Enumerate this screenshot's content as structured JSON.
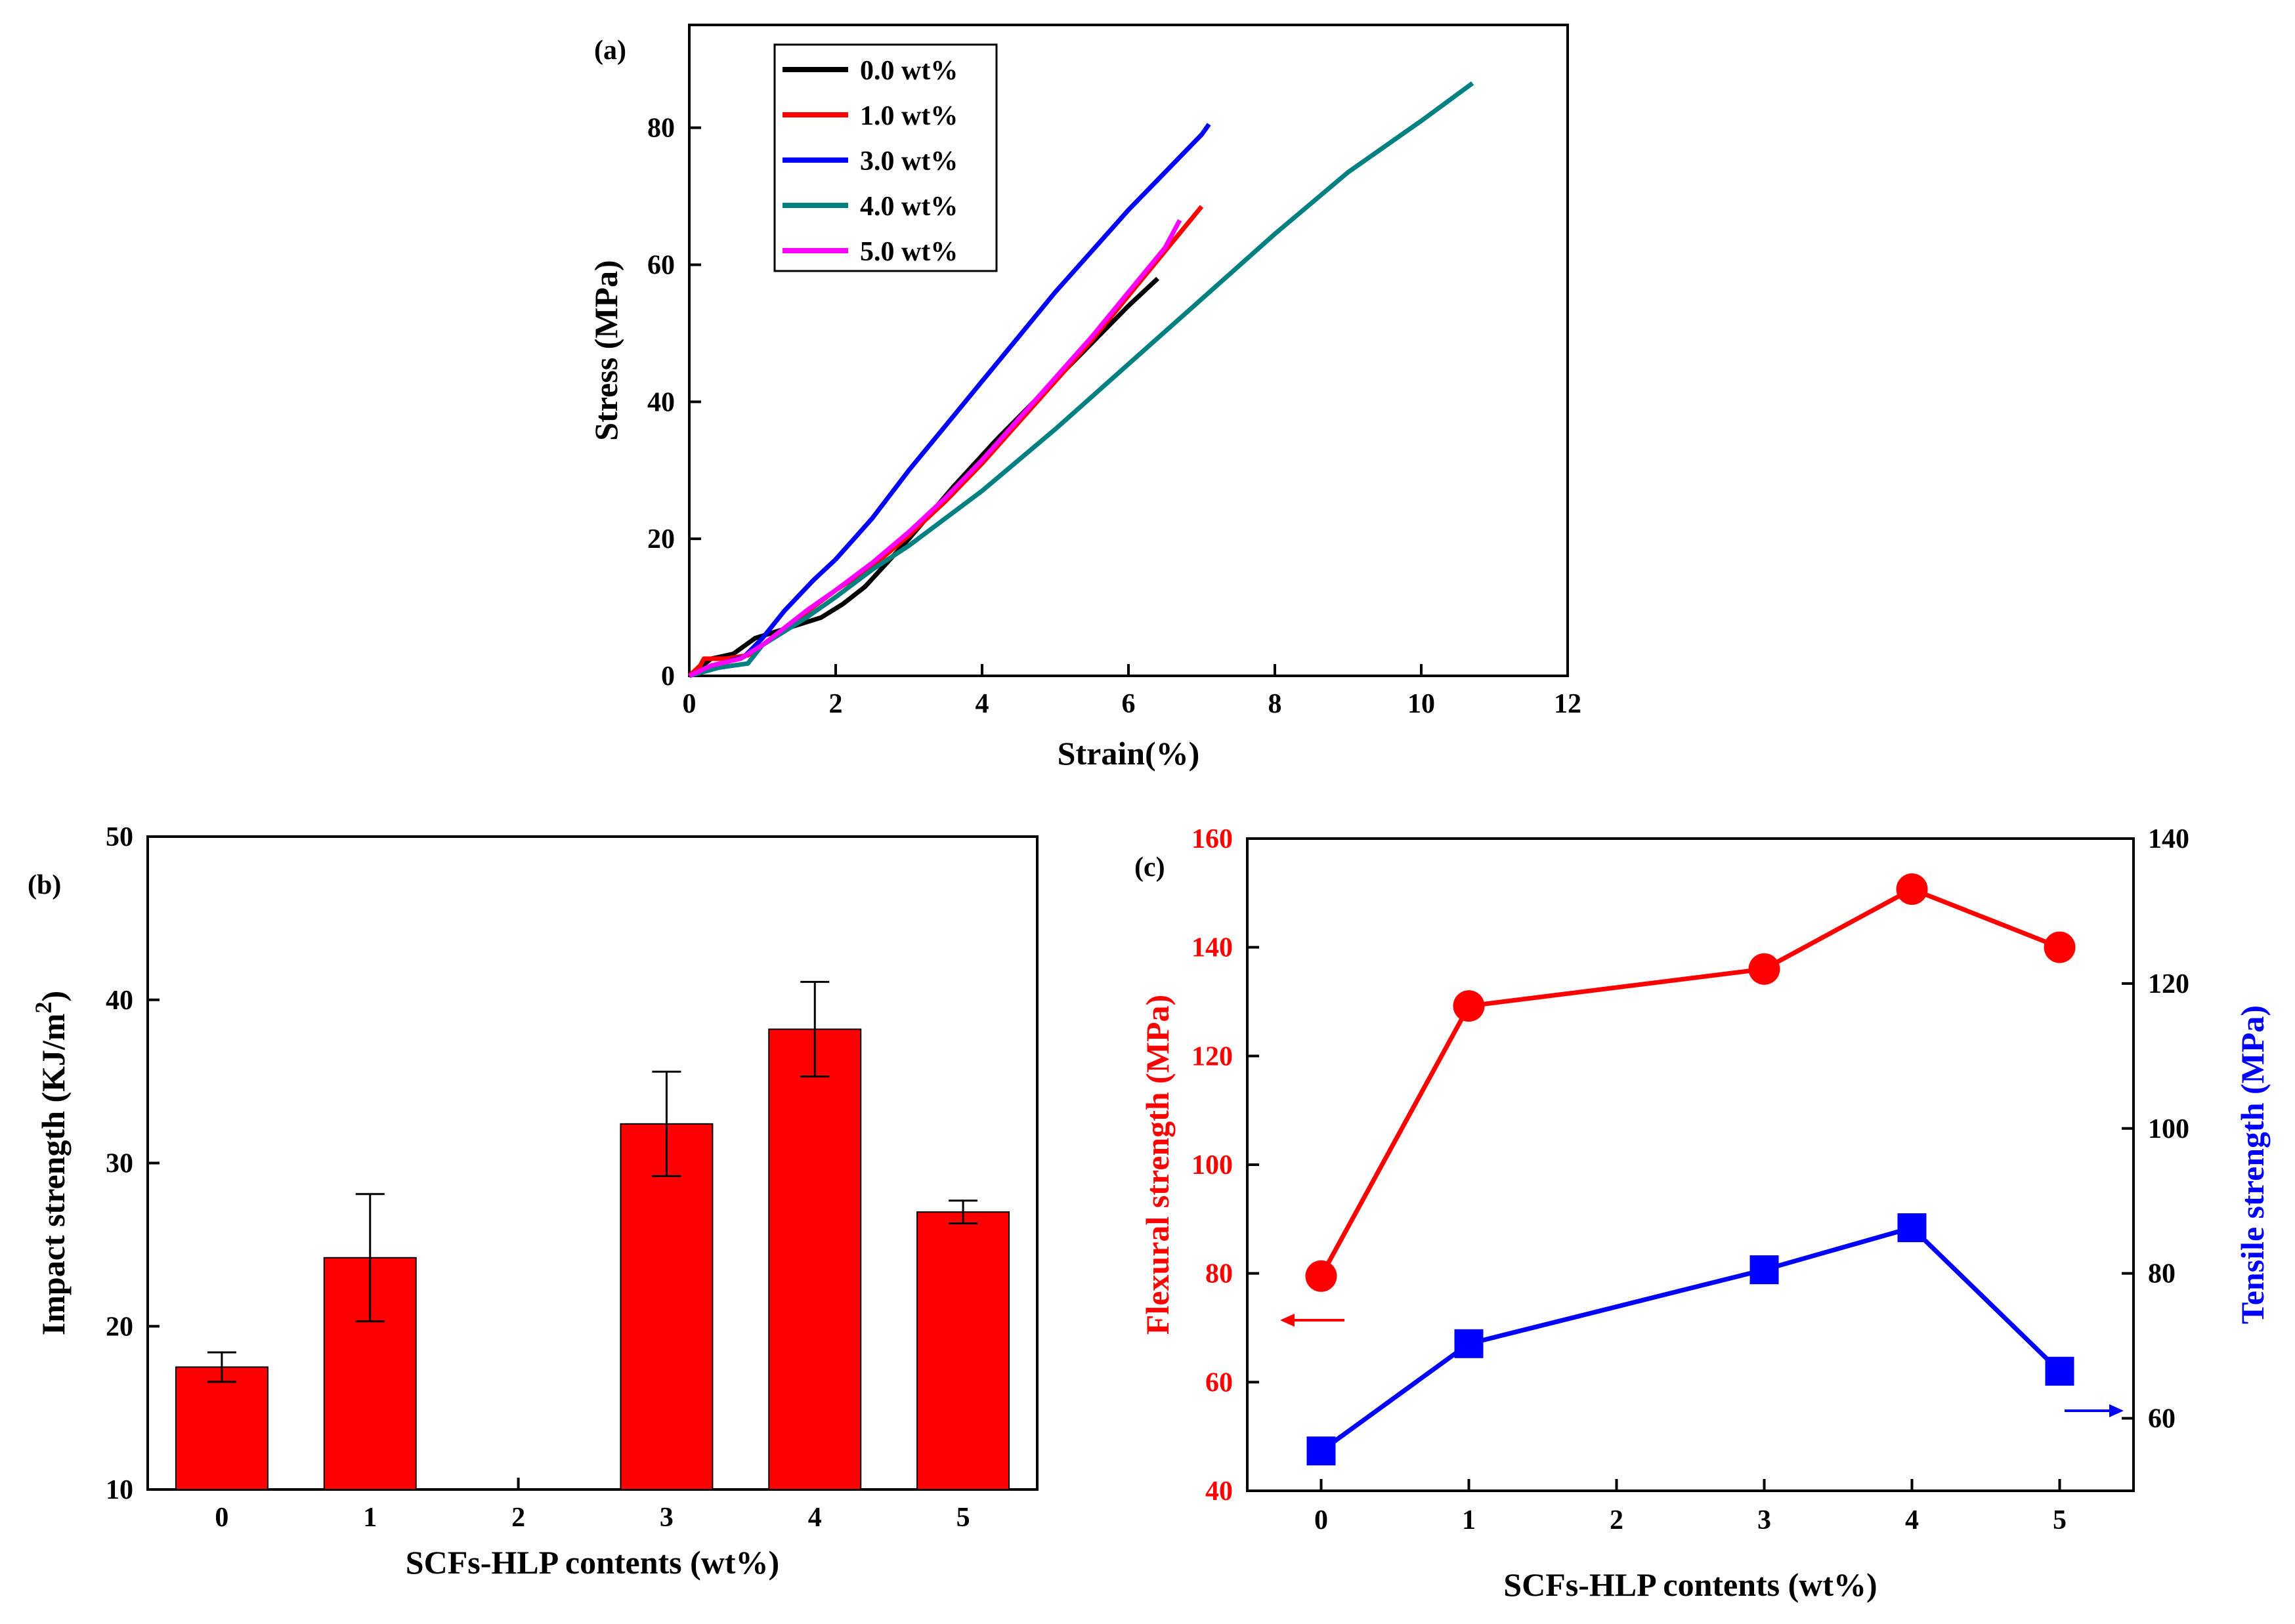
{
  "chart_data": [
    {
      "id": "a",
      "panel_label": "(a)",
      "type": "line",
      "xlabel": "Strain(%)",
      "ylabel": "Stress (MPa)",
      "xlim": [
        0,
        12
      ],
      "ylim": [
        0,
        95
      ],
      "xticks": [
        0,
        2,
        4,
        6,
        8,
        10,
        12
      ],
      "yticks": [
        0,
        20,
        40,
        60,
        80
      ],
      "legend_position": "top-left",
      "series": [
        {
          "name": "0.0 wt%",
          "color": "#000000",
          "x": [
            0,
            0.3,
            0.6,
            0.9,
            1.2,
            1.5,
            1.8,
            2.1,
            2.4,
            3.0,
            3.6,
            4.2,
            4.8,
            5.4,
            6.0,
            6.4
          ],
          "y": [
            0,
            2.5,
            3.2,
            5.5,
            6.5,
            7.5,
            8.5,
            10.5,
            13,
            20,
            27.5,
            34.5,
            41,
            47.5,
            54,
            58
          ]
        },
        {
          "name": "1.0 wt%",
          "color": "#ff0000",
          "x": [
            0,
            0.15,
            0.2,
            0.5,
            0.8,
            1.0,
            1.5,
            2.0,
            2.5,
            3.0,
            3.5,
            4.0,
            4.5,
            5.0,
            5.5,
            6.0,
            6.5,
            7.0
          ],
          "y": [
            0,
            1.5,
            2.5,
            2.5,
            3,
            4.5,
            8.5,
            12.5,
            16,
            20.5,
            25.5,
            31,
            37,
            43,
            49,
            55.5,
            62,
            68.5
          ]
        },
        {
          "name": "3.0 wt%",
          "color": "#0000ff",
          "x": [
            0,
            0.3,
            0.5,
            0.75,
            1.0,
            1.3,
            1.7,
            2.0,
            2.5,
            3.0,
            3.5,
            4.0,
            4.5,
            5.0,
            5.5,
            6.0,
            6.5,
            7.0,
            7.1
          ],
          "y": [
            0,
            1.2,
            2,
            2.8,
            5.5,
            9.5,
            14,
            17,
            23,
            30,
            36.5,
            43,
            49.5,
            56,
            62,
            68,
            73.5,
            79,
            80.5
          ]
        },
        {
          "name": "4.0 wt%",
          "color": "#008080",
          "x": [
            0,
            0.4,
            0.6,
            0.8,
            1.0,
            1.3,
            1.6,
            2.0,
            2.5,
            3.0,
            4.0,
            5.0,
            6.0,
            7.0,
            8.0,
            9.0,
            10.0,
            10.7
          ],
          "y": [
            0,
            1.2,
            1.5,
            1.8,
            4.5,
            6.5,
            8.5,
            11.5,
            15.5,
            19,
            27,
            36,
            45.5,
            55,
            64.5,
            73.5,
            81,
            86.5
          ]
        },
        {
          "name": "5.0 wt%",
          "color": "#ff00ff",
          "x": [
            0,
            0.3,
            0.7,
            1.0,
            1.3,
            1.6,
            2.0,
            2.5,
            3.0,
            3.5,
            4.0,
            4.5,
            5.0,
            5.5,
            6.0,
            6.5,
            6.7
          ],
          "y": [
            0,
            1.5,
            2.5,
            4.5,
            7,
            9.5,
            12.5,
            16.5,
            21,
            26,
            31.5,
            37.5,
            43.5,
            49.5,
            56,
            62.5,
            66.5
          ]
        }
      ]
    },
    {
      "id": "b",
      "panel_label": "(b)",
      "type": "bar",
      "xlabel": "SCFs-HLP contents (wt%)",
      "ylabel": "Impact strength (KJ/m",
      "ylabel_sup": "2",
      "ylabel_close": ")",
      "xlim": [
        -0.5,
        5.5
      ],
      "ylim": [
        10,
        50
      ],
      "categories": [
        "0",
        "1",
        "2",
        "3",
        "4",
        "5"
      ],
      "yticks": [
        10,
        20,
        30,
        40,
        50
      ],
      "values": [
        17.5,
        24.2,
        null,
        32.4,
        38.2,
        27.0
      ],
      "errors": [
        0.9,
        3.9,
        null,
        3.2,
        2.9,
        0.7
      ],
      "bar_color": "#ff0000"
    },
    {
      "id": "c",
      "panel_label": "(c)",
      "type": "line",
      "xlabel": "SCFs-HLP contents (wt%)",
      "xlim": [
        -0.5,
        5.5
      ],
      "xticks": [
        0,
        1,
        2,
        3,
        4,
        5
      ],
      "left_axis": {
        "label": "Flexural strength (MPa)",
        "color": "#ff0000",
        "ylim": [
          40,
          160
        ],
        "ticks": [
          40,
          60,
          80,
          100,
          120,
          140,
          160
        ]
      },
      "right_axis": {
        "label": "Tensile strength (MPa)",
        "color": "#0000ff",
        "ylim": [
          50,
          140
        ],
        "ticks": [
          60,
          80,
          100,
          120,
          140
        ]
      },
      "series": [
        {
          "name": "Flexural strength",
          "axis": "left",
          "marker": "circle",
          "color": "#ff0000",
          "x": [
            0,
            1,
            3,
            4,
            5
          ],
          "y": [
            79.5,
            129.2,
            136,
            150.7,
            140
          ]
        },
        {
          "name": "Tensile strength",
          "axis": "right",
          "marker": "square",
          "color": "#0000ff",
          "x": [
            0,
            1,
            3,
            4,
            5
          ],
          "y": [
            55.5,
            70.3,
            80.5,
            86.3,
            66.5
          ]
        }
      ]
    }
  ]
}
